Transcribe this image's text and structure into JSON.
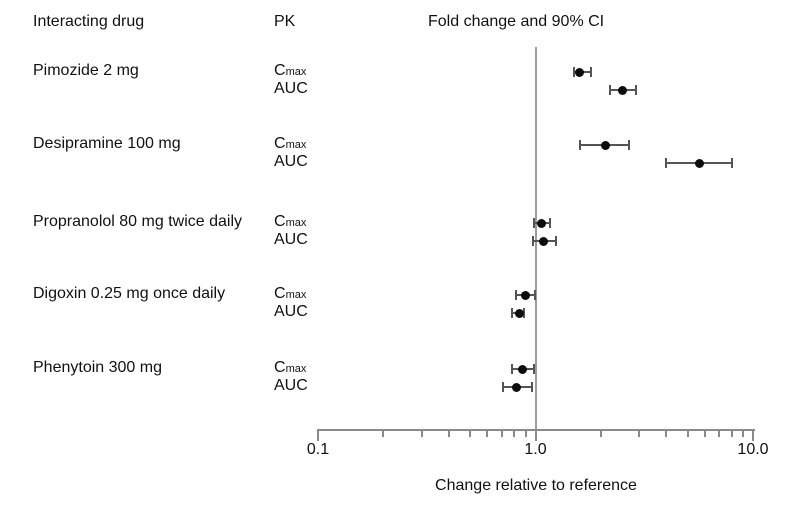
{
  "header": {
    "col_drug": "Interacting drug",
    "col_pk": "PK",
    "col_plot": "Fold change and 90% CI"
  },
  "chart_data": {
    "type": "scatter",
    "subtype": "forest-plot",
    "title": "Fold change and 90% CI",
    "xlabel": "Change relative to reference",
    "xscale": "log",
    "xlim": [
      0.1,
      10.0
    ],
    "x_ticks_major": [
      0.1,
      1.0,
      10.0
    ],
    "x_tick_labels": [
      "0.1",
      "1.0",
      "10.0"
    ],
    "x_ticks_minor": [
      0.2,
      0.3,
      0.4,
      0.5,
      0.6,
      0.7,
      0.8,
      0.9,
      2,
      3,
      4,
      5,
      6,
      7,
      8,
      9
    ],
    "reference_line_x": 1.0,
    "grid": false,
    "point_color": "#0d0d0d",
    "reference_line_color": "#9c9c9c",
    "groups": [
      {
        "drug": "Pimozide 2 mg",
        "measures": [
          {
            "pk": "Cmax",
            "value": 1.6,
            "ci": [
              1.5,
              1.8
            ]
          },
          {
            "pk": "AUC",
            "value": 2.5,
            "ci": [
              2.2,
              2.9
            ]
          }
        ]
      },
      {
        "drug": "Desipramine 100 mg",
        "measures": [
          {
            "pk": "Cmax",
            "value": 2.1,
            "ci": [
              1.6,
              2.7
            ]
          },
          {
            "pk": "AUC",
            "value": 5.7,
            "ci": [
              4.0,
              8.0
            ]
          }
        ]
      },
      {
        "drug": "Propranolol 80 mg twice daily",
        "measures": [
          {
            "pk": "Cmax",
            "value": 1.07,
            "ci": [
              0.98,
              1.17
            ]
          },
          {
            "pk": "AUC",
            "value": 1.09,
            "ci": [
              0.97,
              1.24
            ]
          }
        ]
      },
      {
        "drug": "Digoxin 0.25 mg once daily",
        "measures": [
          {
            "pk": "Cmax",
            "value": 0.9,
            "ci": [
              0.81,
              0.99
            ]
          },
          {
            "pk": "AUC",
            "value": 0.84,
            "ci": [
              0.78,
              0.89
            ]
          }
        ]
      },
      {
        "drug": "Phenytoin 300 mg",
        "measures": [
          {
            "pk": "Cmax",
            "value": 0.87,
            "ci": [
              0.78,
              0.98
            ]
          },
          {
            "pk": "AUC",
            "value": 0.82,
            "ci": [
              0.71,
              0.96
            ]
          }
        ]
      }
    ]
  }
}
